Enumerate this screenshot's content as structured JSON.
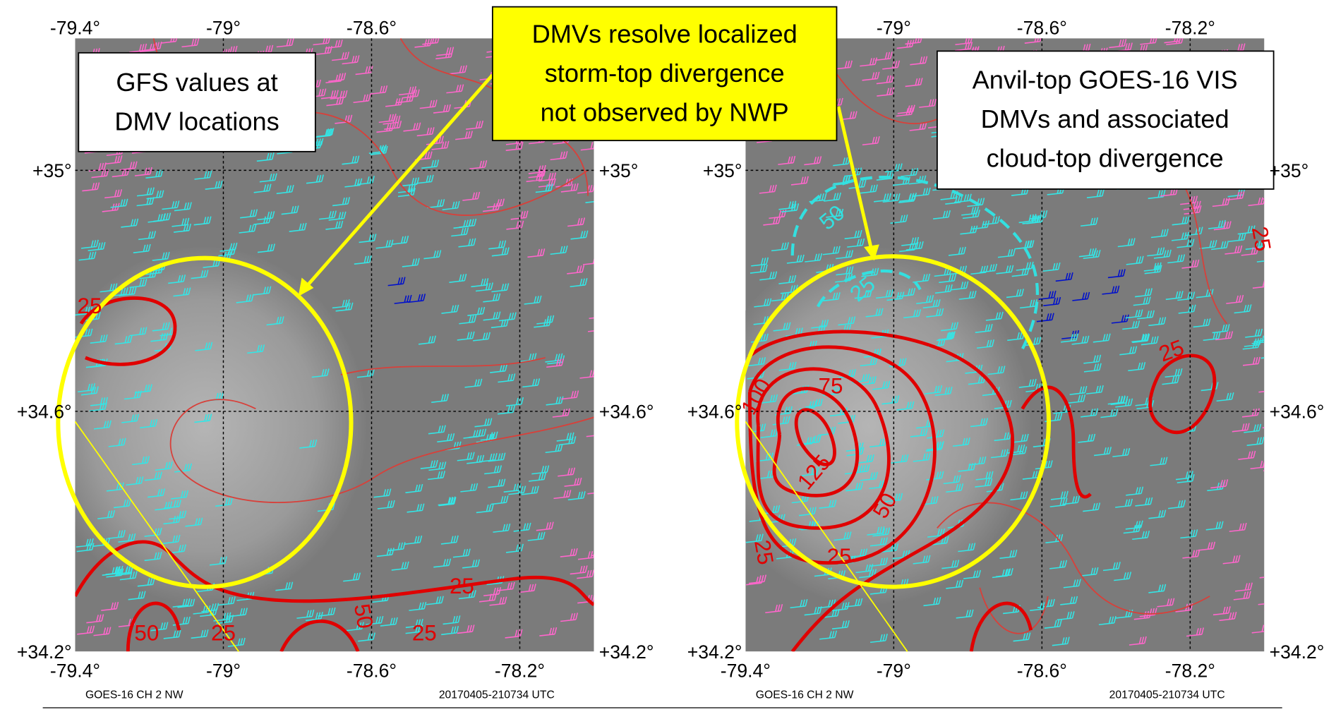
{
  "callout": [
    "DMVs resolve localized",
    "storm-top divergence",
    "not observed by NWP"
  ],
  "panels": [
    {
      "lon_top": [
        "-79.4°",
        "-79°",
        "-78.6°"
      ],
      "lon_bottom": [
        "-79.4°",
        "-79°",
        "-78.6°",
        "-78.2°"
      ],
      "lat_left": [
        "+35°",
        "+34.6°",
        "+34.2°"
      ],
      "lat_right": [
        "+35°",
        "+34.6°",
        "+34.2°"
      ],
      "annotation": [
        "GFS values at",
        "DMV locations"
      ],
      "contour_labels": [
        "25",
        "50",
        "25",
        "50",
        "25",
        "25"
      ],
      "footer_left": "GOES-16 CH 2 NW",
      "footer_right": "20170405-210734 UTC"
    },
    {
      "lon_top": [
        "-79°",
        "-78.6°",
        "-78.2°"
      ],
      "lon_bottom": [
        "-79.4°",
        "-79°",
        "-78.6°",
        "-78.2°"
      ],
      "lat_left": [
        "+35°",
        "+34.6°",
        "+34.2°"
      ],
      "lat_right": [
        "+35°",
        "+34.6°",
        "+34.2°"
      ],
      "annotation": [
        "Anvil-top GOES-16 VIS",
        "DMVs and associated",
        "cloud-top divergence"
      ],
      "contour_labels": [
        "100",
        "75",
        "125",
        "50",
        "25",
        "25",
        "50",
        "25",
        "25",
        "25"
      ],
      "footer_left": "GOES-16 CH 2 NW",
      "footer_right": "20170405-210734 UTC"
    }
  ]
}
